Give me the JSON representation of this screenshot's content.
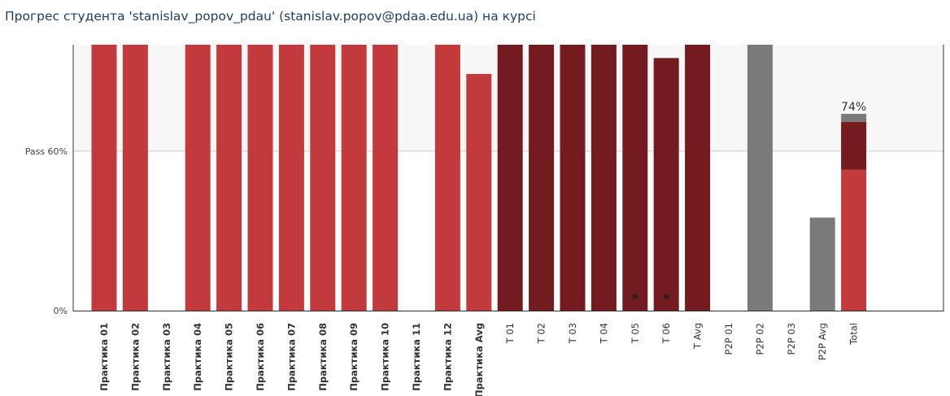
{
  "page": {
    "title": "Прогрес студента 'stanislav_popov_pdau' (stanislav.popov@pdaa.edu.ua) на курсі"
  },
  "chart_data": {
    "type": "bar",
    "ylim": [
      0,
      1
    ],
    "y_ticks": [
      {
        "value": 0.0,
        "label": "0%"
      },
      {
        "value": 0.6,
        "label": "Pass 60%"
      }
    ],
    "colors": {
      "practice": "#c33a3d",
      "test": "#731b1e",
      "p2p": "#7a7a7a",
      "band": "#f7f7f7",
      "grid": "#cccccc",
      "axis": "#333333"
    },
    "bars": [
      {
        "label": "Практика 01",
        "value": 1.0,
        "group": "practice",
        "bold_label": true
      },
      {
        "label": "Практика 02",
        "value": 1.0,
        "group": "practice",
        "bold_label": true
      },
      {
        "label": "Практика 03",
        "value": 0,
        "group": "practice",
        "bold_label": true
      },
      {
        "label": "Практика 04",
        "value": 1.0,
        "group": "practice",
        "bold_label": true
      },
      {
        "label": "Практика 05",
        "value": 1.0,
        "group": "practice",
        "bold_label": true
      },
      {
        "label": "Практика 06",
        "value": 1.0,
        "group": "practice",
        "bold_label": true
      },
      {
        "label": "Практика 07",
        "value": 1.0,
        "group": "practice",
        "bold_label": true
      },
      {
        "label": "Практика 08",
        "value": 1.0,
        "group": "practice",
        "bold_label": true
      },
      {
        "label": "Практика 09",
        "value": 1.0,
        "group": "practice",
        "bold_label": true
      },
      {
        "label": "Практика 10",
        "value": 1.0,
        "group": "practice",
        "bold_label": true
      },
      {
        "label": "Практика 11",
        "value": 0,
        "group": "practice",
        "bold_label": true
      },
      {
        "label": "Практика 12",
        "value": 1.0,
        "group": "practice",
        "bold_label": true
      },
      {
        "label": "Практика Avg",
        "value": 0.89,
        "group": "practice",
        "bold_label": true
      },
      {
        "label": "T 01",
        "value": 1.0,
        "group": "test",
        "bold_label": false
      },
      {
        "label": "T 02",
        "value": 1.0,
        "group": "test",
        "bold_label": false
      },
      {
        "label": "T 03",
        "value": 1.0,
        "group": "test",
        "bold_label": false
      },
      {
        "label": "T 04",
        "value": 1.0,
        "group": "test",
        "bold_label": false
      },
      {
        "label": "T 05",
        "value": 1.0,
        "group": "test",
        "bold_label": false,
        "marker": "✖"
      },
      {
        "label": "T 06",
        "value": 0.95,
        "group": "test",
        "bold_label": false,
        "marker": "✖"
      },
      {
        "label": "T Avg",
        "value": 1.0,
        "group": "test",
        "bold_label": false
      },
      {
        "label": "P2P 01",
        "value": 0,
        "group": "p2p",
        "bold_label": false
      },
      {
        "label": "P2P 02",
        "value": 1.0,
        "group": "p2p",
        "bold_label": false
      },
      {
        "label": "P2P 03",
        "value": 0,
        "group": "p2p",
        "bold_label": false
      },
      {
        "label": "P2P Avg",
        "value": 0.35,
        "group": "p2p",
        "bold_label": false
      },
      {
        "label": "Total",
        "value": 0.74,
        "group": "total",
        "bold_label": false
      }
    ],
    "total": {
      "label": "74%",
      "segments": [
        {
          "group": "practice",
          "value": 0.53
        },
        {
          "group": "test",
          "value": 0.18
        },
        {
          "group": "p2p",
          "value": 0.03
        }
      ]
    }
  }
}
